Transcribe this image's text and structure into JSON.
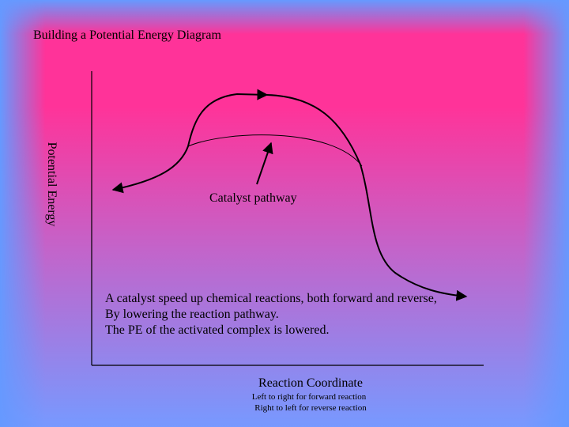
{
  "header": {
    "title": "Building a Potential Energy Diagram"
  },
  "diagram": {
    "y_axis_label": "Potential Energy",
    "x_axis_label": "Reaction Coordinate",
    "x_axis_notes": [
      "Left to right for forward reaction",
      "Right to left for reverse reaction"
    ],
    "annotation": "Catalyst pathway",
    "body_lines": [
      "A catalyst speed up chemical reactions, both forward and reverse,",
      "By lowering the reaction pathway.",
      "The PE of the activated complex is lowered."
    ]
  }
}
